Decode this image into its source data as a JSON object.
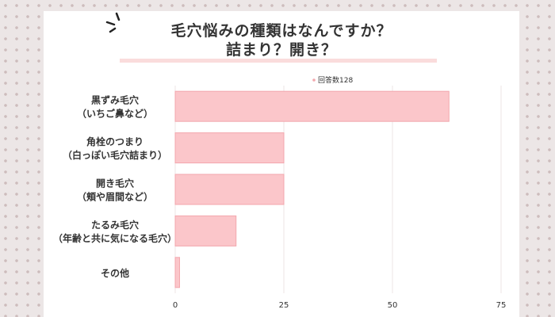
{
  "header": {
    "title_line1": "毛穴悩みの種類はなんですか？",
    "title_line2": "詰まり？開き？"
  },
  "chart_data": {
    "type": "bar",
    "orientation": "horizontal",
    "legend": "回答数128",
    "legend_position": "top",
    "categories": [
      [
        "黒ずみ毛穴",
        "（いちご鼻など）"
      ],
      [
        "角栓のつまり",
        "（白っぽい毛穴詰まり）"
      ],
      [
        "開き毛穴",
        "（頬や眉間など）"
      ],
      [
        "たるみ毛穴",
        "（年齢と共に気になる毛穴）"
      ],
      [
        "その他"
      ]
    ],
    "values": [
      63,
      25,
      25,
      14,
      1
    ],
    "xlim": [
      0,
      75
    ],
    "xticks": [
      0,
      25,
      50,
      75
    ],
    "grid": true,
    "colors": {
      "bar": "#fbc6ca",
      "bar_edge": "#f3a7ad",
      "grid": "#ece6e6"
    }
  }
}
